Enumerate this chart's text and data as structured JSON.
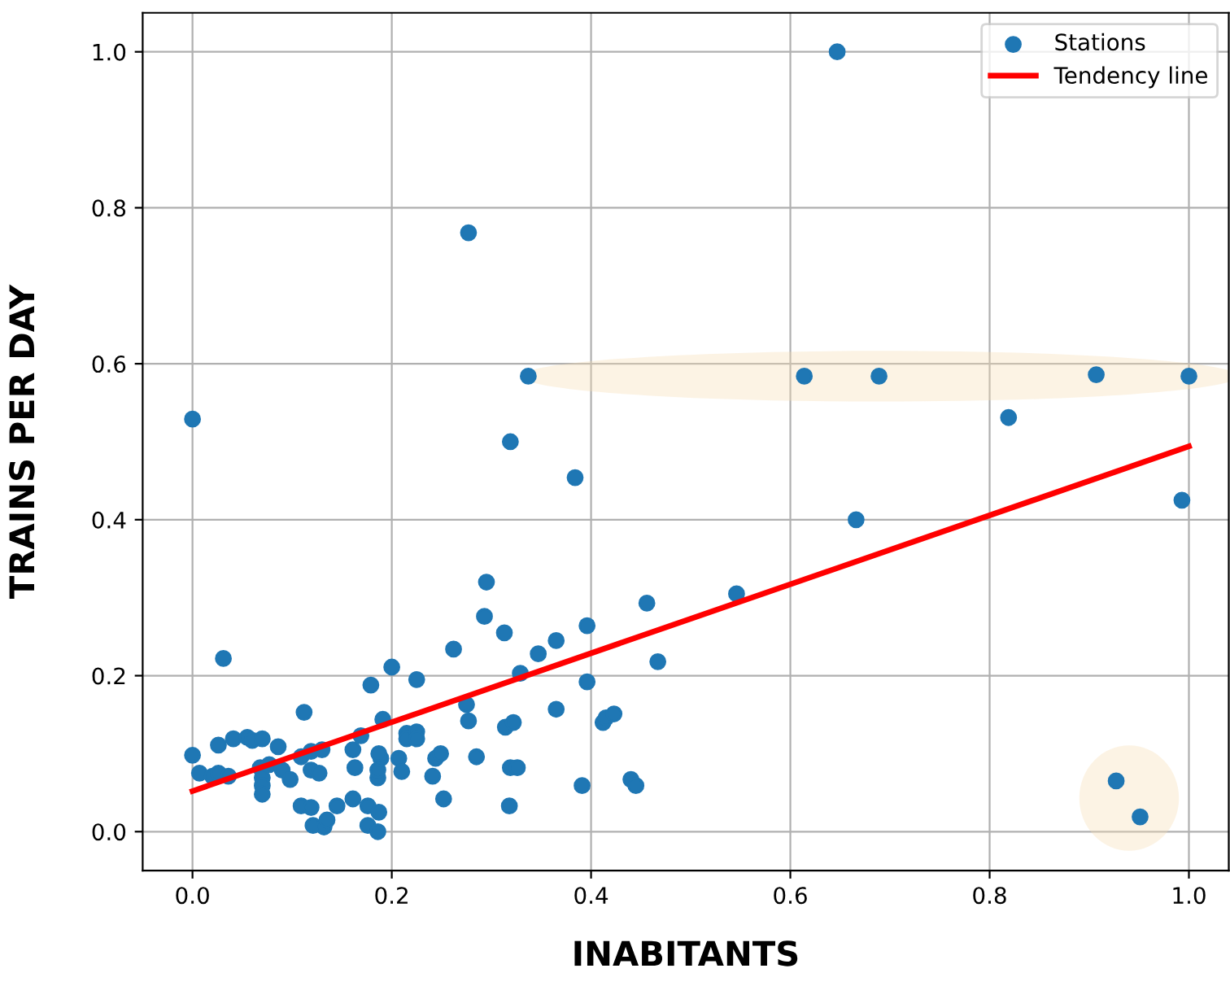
{
  "chart_data": {
    "type": "scatter",
    "xlabel": "INABITANTS",
    "ylabel": "TRAINS PER DAY",
    "series": [
      {
        "name": "Stations",
        "color": "#1f77b4",
        "marker": "circle",
        "x": [
          0,
          0,
          0.007,
          0.02,
          0.026,
          0.026,
          0.031,
          0.036,
          0.041,
          0.055,
          0.06,
          0.07,
          0.068,
          0.07,
          0.07,
          0.07,
          0.077,
          0.086,
          0.09,
          0.098,
          0.112,
          0.109,
          0.119,
          0.13,
          0.119,
          0.127,
          0.109,
          0.119,
          0.121,
          0.132,
          0.135,
          0.145,
          0.161,
          0.163,
          0.161,
          0.169,
          0.179,
          0.176,
          0.176,
          0.186,
          0.186,
          0.189,
          0.187,
          0.187,
          0.186,
          0.191,
          0.2,
          0.207,
          0.21,
          0.215,
          0.215,
          0.225,
          0.225,
          0.225,
          0.241,
          0.244,
          0.249,
          0.252,
          0.262,
          0.275,
          0.277,
          0.277,
          0.285,
          0.293,
          0.295,
          0.313,
          0.314,
          0.319,
          0.322,
          0.319,
          0.326,
          0.318,
          0.329,
          0.337,
          0.347,
          0.365,
          0.365,
          0.384,
          0.391,
          0.396,
          0.396,
          0.412,
          0.415,
          0.423,
          0.44,
          0.445,
          0.456,
          0.467,
          0.546,
          0.614,
          0.647,
          0.666,
          0.689,
          0.819,
          0.907,
          0.927,
          0.951,
          0.993,
          1.0
        ],
        "values": [
          0.529,
          0.098,
          0.075,
          0.071,
          0.075,
          0.111,
          0.222,
          0.071,
          0.119,
          0.121,
          0.117,
          0.119,
          0.082,
          0.069,
          0.059,
          0.048,
          0.086,
          0.109,
          0.079,
          0.067,
          0.153,
          0.096,
          0.103,
          0.105,
          0.079,
          0.075,
          0.033,
          0.031,
          0.008,
          0.006,
          0.015,
          0.033,
          0.042,
          0.082,
          0.105,
          0.123,
          0.188,
          0.033,
          0.008,
          0.069,
          0.079,
          0.094,
          0.1,
          0.025,
          0.0,
          0.144,
          0.211,
          0.094,
          0.077,
          0.126,
          0.119,
          0.195,
          0.128,
          0.119,
          0.071,
          0.094,
          0.1,
          0.042,
          0.234,
          0.163,
          0.142,
          0.768,
          0.096,
          0.276,
          0.32,
          0.255,
          0.134,
          0.5,
          0.14,
          0.082,
          0.082,
          0.033,
          0.203,
          0.584,
          0.228,
          0.245,
          0.157,
          0.454,
          0.059,
          0.264,
          0.192,
          0.14,
          0.146,
          0.151,
          0.067,
          0.059,
          0.293,
          0.218,
          0.305,
          0.584,
          1.0,
          0.4,
          0.584,
          0.531,
          0.586,
          0.065,
          0.019,
          0.425,
          0.584
        ]
      },
      {
        "name": "Tendency line",
        "type": "line",
        "color": "#ff0000",
        "line_style": "solid",
        "x": [
          0,
          1
        ],
        "values": [
          0.052,
          0.494
        ]
      }
    ],
    "xlim": [
      -0.05,
      1.04
    ],
    "ylim": [
      -0.05,
      1.05
    ],
    "xticks": [
      {
        "value": 0,
        "label": "0.0"
      },
      {
        "value": 0.2,
        "label": "0.2"
      },
      {
        "value": 0.4,
        "label": "0.4"
      },
      {
        "value": 0.6,
        "label": "0.6"
      },
      {
        "value": 0.8,
        "label": "0.8"
      },
      {
        "value": 1,
        "label": "1.0"
      }
    ],
    "yticks": [
      {
        "value": 0,
        "label": "0.0"
      },
      {
        "value": 0.2,
        "label": "0.2"
      },
      {
        "value": 0.4,
        "label": "0.4"
      },
      {
        "value": 0.6,
        "label": "0.6"
      },
      {
        "value": 0.8,
        "label": "0.8"
      },
      {
        "value": 1,
        "label": "1.0"
      }
    ],
    "grid": true,
    "legend": "top right"
  }
}
